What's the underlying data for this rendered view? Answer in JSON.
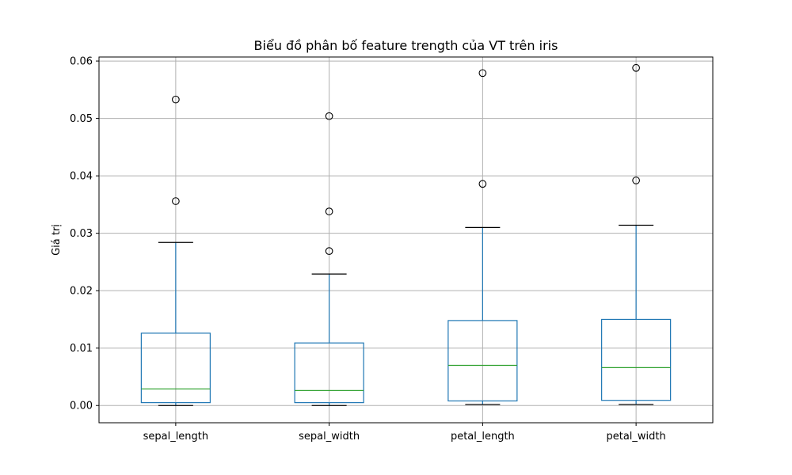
{
  "chart_data": {
    "type": "box",
    "title": "Biểu đồ phân bố feature trength của VT trên iris",
    "ylabel": "Giá trị",
    "xlabel": "",
    "ylim": [
      -0.003,
      0.0607
    ],
    "yticks": [
      0.0,
      0.01,
      0.02,
      0.03,
      0.04,
      0.05,
      0.06
    ],
    "ytick_labels": [
      "0.00",
      "0.01",
      "0.02",
      "0.03",
      "0.04",
      "0.05",
      "0.06"
    ],
    "grid": true,
    "categories": [
      "sepal_length",
      "sepal_width",
      "petal_length",
      "petal_width"
    ],
    "boxes": [
      {
        "label": "sepal_length",
        "whisker_low": 0.0,
        "q1": 0.0005,
        "median": 0.0029,
        "q3": 0.0126,
        "whisker_high": 0.0284,
        "outliers": [
          0.0356,
          0.0533
        ]
      },
      {
        "label": "sepal_width",
        "whisker_low": 0.0,
        "q1": 0.0005,
        "median": 0.0026,
        "q3": 0.0109,
        "whisker_high": 0.0229,
        "outliers": [
          0.0269,
          0.0338,
          0.0504
        ]
      },
      {
        "label": "petal_length",
        "whisker_low": 0.0002,
        "q1": 0.0008,
        "median": 0.007,
        "q3": 0.0148,
        "whisker_high": 0.031,
        "outliers": [
          0.0386,
          0.0579
        ]
      },
      {
        "label": "petal_width",
        "whisker_low": 0.0002,
        "q1": 0.0009,
        "median": 0.0066,
        "q3": 0.015,
        "whisker_high": 0.0314,
        "outliers": [
          0.0392,
          0.0588
        ]
      }
    ],
    "colors": {
      "box": "#1f77b4",
      "median": "#2ca02c",
      "whisker_cap": "#000000",
      "outlier": "#000000",
      "grid": "#b0b0b0"
    }
  }
}
